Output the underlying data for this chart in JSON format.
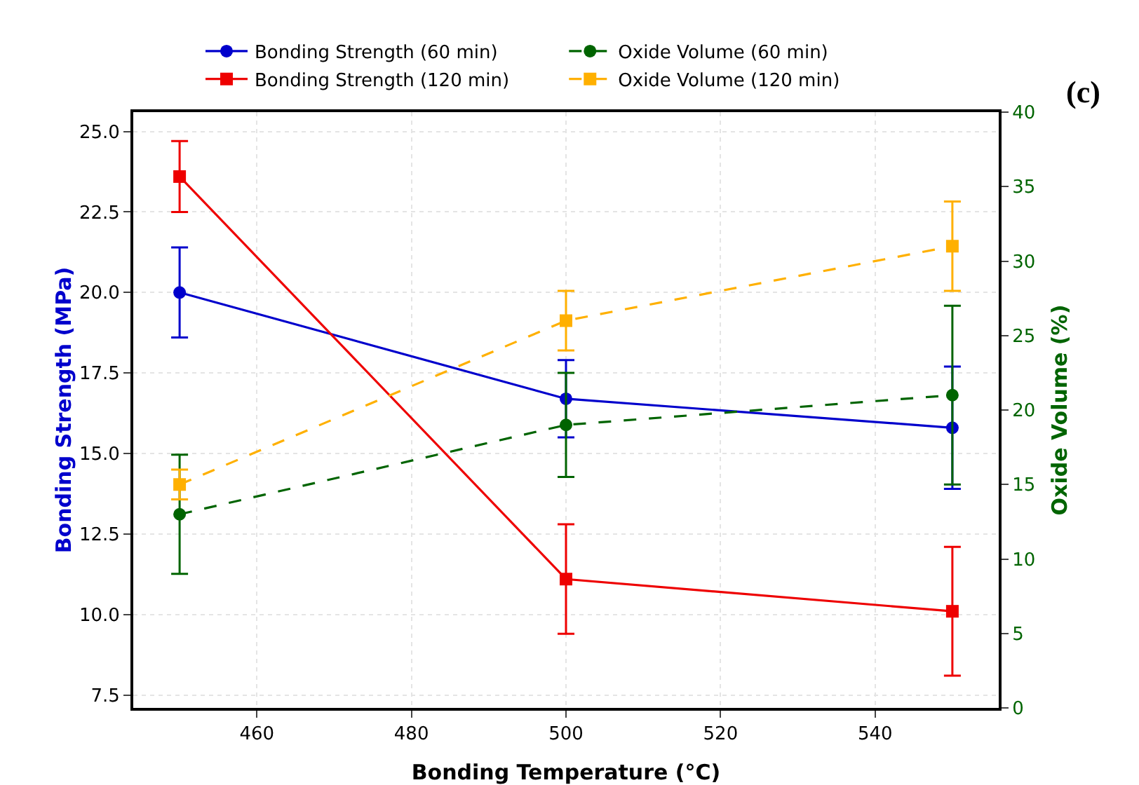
{
  "chart_data": {
    "type": "line",
    "xlabel": "Bonding Temperature (°C)",
    "ylabel": "Bonding Strength (MPa)",
    "y2label": "Oxide Volume (%)",
    "x": [
      450,
      500,
      550
    ],
    "xlim": [
      444,
      556
    ],
    "xticks": [
      460,
      480,
      500,
      520,
      540
    ],
    "ylim": [
      7.1,
      25.6
    ],
    "yticks": [
      {
        "value": 7.5,
        "label": "7.5"
      },
      {
        "value": 10,
        "label": "10.0"
      },
      {
        "value": 12.5,
        "label": "12.5"
      },
      {
        "value": 15,
        "label": "15.0"
      },
      {
        "value": 17.5,
        "label": "17.5"
      },
      {
        "value": 20,
        "label": "20.0"
      },
      {
        "value": 22.5,
        "label": "22.5"
      },
      {
        "value": 25,
        "label": "25.0"
      }
    ],
    "y2lim": [
      0,
      40
    ],
    "y2ticks": [
      0,
      5,
      10,
      15,
      20,
      25,
      30,
      35,
      40
    ],
    "grid": true,
    "legend": "top",
    "annotations": [
      "(c)"
    ],
    "series": [
      {
        "name": "Bonding Strength (60 min)",
        "color": "#0000cc",
        "values": [
          20.0,
          16.7,
          15.8
        ],
        "errors": [
          1.4,
          1.2,
          1.9
        ],
        "marker": "circle",
        "line_style": "solid"
      },
      {
        "name": "Oxide Volume (60 min)",
        "color": "#006400",
        "values": [
          13,
          19,
          21
        ],
        "errors": [
          4,
          3.5,
          6
        ],
        "marker": "circle",
        "line_style": "dashed",
        "axis": "y2"
      },
      {
        "name": "Bonding Strength (120 min)",
        "color": "#ee0000",
        "values": [
          23.6,
          11.1,
          10.1
        ],
        "errors": [
          1.1,
          1.7,
          2.0
        ],
        "marker": "square",
        "line_style": "solid"
      },
      {
        "name": "Oxide Volume (120 min)",
        "color": "#ffb000",
        "values": [
          15,
          26,
          31
        ],
        "errors": [
          1,
          2,
          3
        ],
        "marker": "square",
        "line_style": "dashed",
        "axis": "y2"
      }
    ]
  }
}
